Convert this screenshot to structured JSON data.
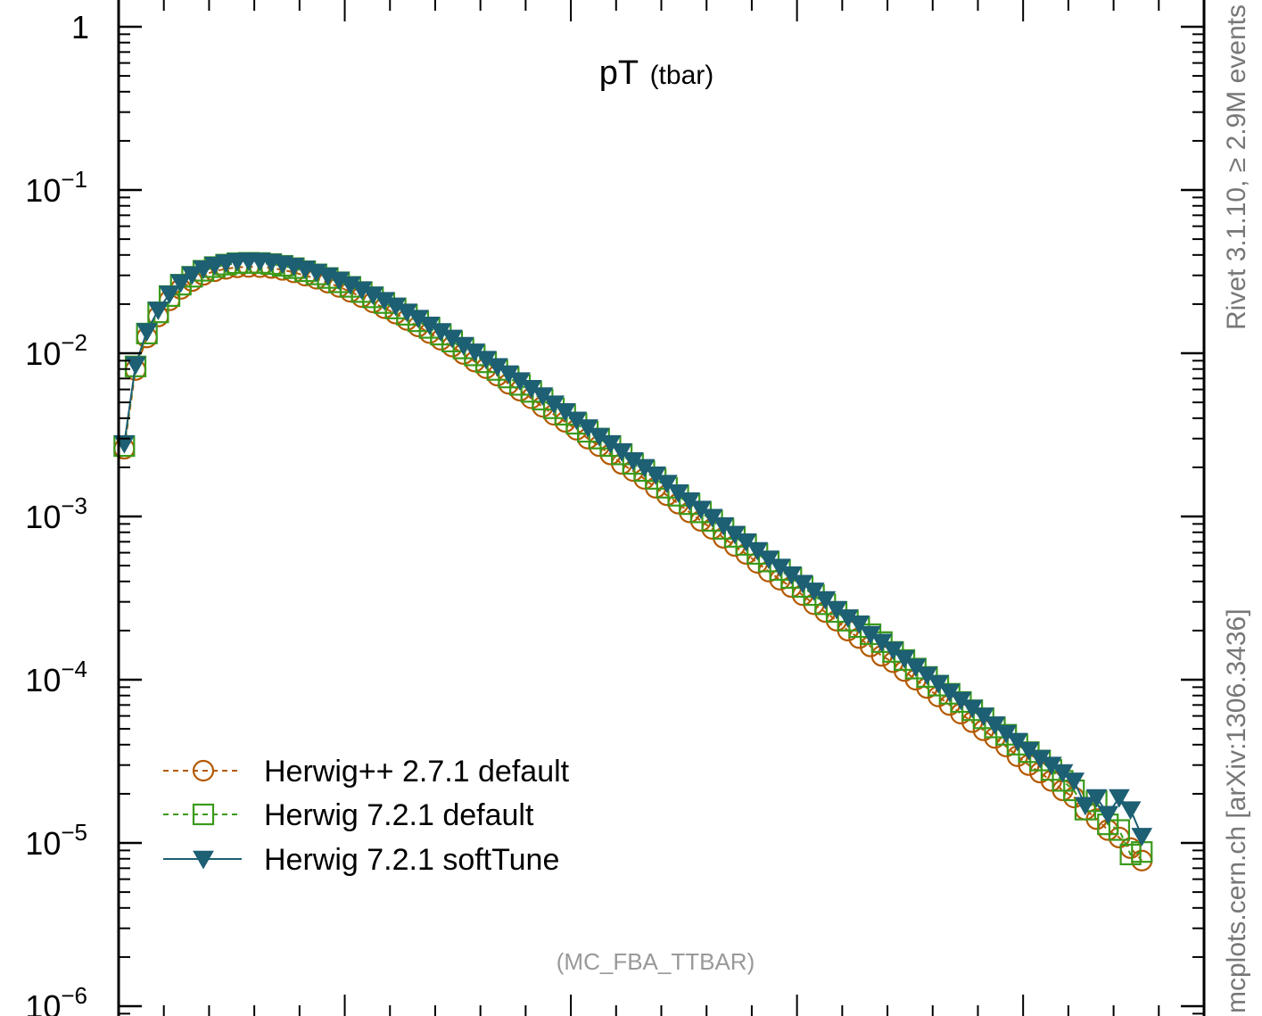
{
  "chart_data": {
    "type": "scatter",
    "title_main": "pT",
    "title_sub": "(tbar)",
    "xlabel": "",
    "ylabel": "",
    "yscale": "log",
    "ylim": [
      1e-06,
      1.3
    ],
    "xlim": [
      0,
      480
    ],
    "ytick_labels": [
      {
        "value": 1,
        "base": "1",
        "exp": ""
      },
      {
        "value": 0.1,
        "base": "10",
        "exp": "−1"
      },
      {
        "value": 0.01,
        "base": "10",
        "exp": "−2"
      },
      {
        "value": 0.001,
        "base": "10",
        "exp": "−3"
      },
      {
        "value": 0.0001,
        "base": "10",
        "exp": "−4"
      },
      {
        "value": 1e-05,
        "base": "10",
        "exp": "−5"
      },
      {
        "value": 1e-06,
        "base": "10",
        "exp": "−6"
      }
    ],
    "grid": false,
    "legend_position": "bottom-left",
    "annotation": "(MC_FBA_TTBAR)",
    "side_label_top": "Rivet 3.1.10, ≥ 2.9M events",
    "side_label_bottom": "mcplots.cern.ch [arXiv:1306.3436]",
    "series": [
      {
        "name": "Herwig++ 2.7.1 default",
        "color": "#b35900",
        "marker": "circle",
        "line": "dashed",
        "points": [
          [
            2.5,
            0.0026
          ],
          [
            7.5,
            0.0079
          ],
          [
            12.5,
            0.0125
          ],
          [
            17.5,
            0.0168
          ],
          [
            22.5,
            0.0211
          ],
          [
            27.5,
            0.0248
          ],
          [
            32.5,
            0.0277
          ],
          [
            37.5,
            0.0302
          ],
          [
            42.5,
            0.0318
          ],
          [
            47.5,
            0.0329
          ],
          [
            52.5,
            0.0336
          ],
          [
            57.5,
            0.0338
          ],
          [
            62.5,
            0.0337
          ],
          [
            67.5,
            0.0333
          ],
          [
            72.5,
            0.0324
          ],
          [
            77.5,
            0.0313
          ],
          [
            82.5,
            0.0299
          ],
          [
            87.5,
            0.0286
          ],
          [
            92.5,
            0.0271
          ],
          [
            97.5,
            0.0255
          ],
          [
            102.5,
            0.0238
          ],
          [
            107.5,
            0.0221
          ],
          [
            112.5,
            0.0205
          ],
          [
            117.5,
            0.0189
          ],
          [
            122.5,
            0.0175
          ],
          [
            127.5,
            0.016
          ],
          [
            132.5,
            0.0146
          ],
          [
            137.5,
            0.0133
          ],
          [
            142.5,
            0.0121
          ],
          [
            147.5,
            0.011
          ],
          [
            152.5,
            0.0099
          ],
          [
            157.5,
            0.0089
          ],
          [
            162.5,
            0.0081
          ],
          [
            167.5,
            0.0073
          ],
          [
            172.5,
            0.0065
          ],
          [
            177.5,
            0.0059
          ],
          [
            182.5,
            0.0053
          ],
          [
            187.5,
            0.0047
          ],
          [
            192.5,
            0.0042
          ],
          [
            197.5,
            0.0038
          ],
          [
            202.5,
            0.0034
          ],
          [
            207.5,
            0.003
          ],
          [
            212.5,
            0.0027
          ],
          [
            217.5,
            0.0024
          ],
          [
            222.5,
            0.0021
          ],
          [
            227.5,
            0.0019
          ],
          [
            232.5,
            0.0017
          ],
          [
            237.5,
            0.0015
          ],
          [
            242.5,
            0.00135
          ],
          [
            247.5,
            0.0012
          ],
          [
            252.5,
            0.00106
          ],
          [
            257.5,
            0.00094
          ],
          [
            262.5,
            0.00084
          ],
          [
            267.5,
            0.00074
          ],
          [
            272.5,
            0.00066
          ],
          [
            277.5,
            0.00059
          ],
          [
            282.5,
            0.00052
          ],
          [
            287.5,
            0.00046
          ],
          [
            292.5,
            0.00041
          ],
          [
            297.5,
            0.00037
          ],
          [
            302.5,
            0.00033
          ],
          [
            307.5,
            0.00029
          ],
          [
            312.5,
            0.00026
          ],
          [
            317.5,
            0.00023
          ],
          [
            322.5,
            0.0002
          ],
          [
            327.5,
            0.00018
          ],
          [
            332.5,
            0.00016
          ],
          [
            337.5,
            0.00014
          ],
          [
            342.5,
            0.000128
          ],
          [
            347.5,
            0.000113
          ],
          [
            352.5,
            0.0001
          ],
          [
            357.5,
            8.9e-05
          ],
          [
            362.5,
            7.9e-05
          ],
          [
            367.5,
            7e-05
          ],
          [
            372.5,
            6.2e-05
          ],
          [
            377.5,
            5.5e-05
          ],
          [
            382.5,
            4.9e-05
          ],
          [
            387.5,
            4.4e-05
          ],
          [
            392.5,
            3.9e-05
          ],
          [
            397.5,
            3.4e-05
          ],
          [
            402.5,
            3e-05
          ],
          [
            407.5,
            2.7e-05
          ],
          [
            412.5,
            2.4e-05
          ],
          [
            417.5,
            2.1e-05
          ],
          [
            422.5,
            1.9e-05
          ],
          [
            427.5,
            1.6e-05
          ],
          [
            432.5,
            1.4e-05
          ],
          [
            437.5,
            1.2e-05
          ],
          [
            442.5,
            1.08e-05
          ],
          [
            447.5,
            9.3e-06
          ],
          [
            452.5,
            7.8e-06
          ]
        ]
      },
      {
        "name": "Herwig 7.2.1 default",
        "color": "#3a9a1a",
        "marker": "square",
        "line": "dashed",
        "points": [
          [
            2.5,
            0.0027
          ],
          [
            7.5,
            0.0083
          ],
          [
            12.5,
            0.0132
          ],
          [
            17.5,
            0.0178
          ],
          [
            22.5,
            0.0224
          ],
          [
            27.5,
            0.0263
          ],
          [
            32.5,
            0.0294
          ],
          [
            37.5,
            0.032
          ],
          [
            42.5,
            0.0337
          ],
          [
            47.5,
            0.0349
          ],
          [
            52.5,
            0.0356
          ],
          [
            57.5,
            0.0358
          ],
          [
            62.5,
            0.0357
          ],
          [
            67.5,
            0.0352
          ],
          [
            72.5,
            0.0343
          ],
          [
            77.5,
            0.0332
          ],
          [
            82.5,
            0.0318
          ],
          [
            87.5,
            0.0304
          ],
          [
            92.5,
            0.0289
          ],
          [
            97.5,
            0.0272
          ],
          [
            102.5,
            0.0255
          ],
          [
            107.5,
            0.0237
          ],
          [
            112.5,
            0.022
          ],
          [
            117.5,
            0.0203
          ],
          [
            122.5,
            0.0188
          ],
          [
            127.5,
            0.0172
          ],
          [
            132.5,
            0.0157
          ],
          [
            137.5,
            0.0143
          ],
          [
            142.5,
            0.013
          ],
          [
            147.5,
            0.0118
          ],
          [
            152.5,
            0.0107
          ],
          [
            157.5,
            0.0097
          ],
          [
            162.5,
            0.0088
          ],
          [
            167.5,
            0.0079
          ],
          [
            172.5,
            0.0071
          ],
          [
            177.5,
            0.0064
          ],
          [
            182.5,
            0.0058
          ],
          [
            187.5,
            0.0052
          ],
          [
            192.5,
            0.0046
          ],
          [
            197.5,
            0.0042
          ],
          [
            202.5,
            0.0037
          ],
          [
            207.5,
            0.0033
          ],
          [
            212.5,
            0.003
          ],
          [
            217.5,
            0.0027
          ],
          [
            222.5,
            0.0024
          ],
          [
            227.5,
            0.0021
          ],
          [
            232.5,
            0.0019
          ],
          [
            237.5,
            0.0017
          ],
          [
            242.5,
            0.0015
          ],
          [
            247.5,
            0.00134
          ],
          [
            252.5,
            0.00119
          ],
          [
            257.5,
            0.00106
          ],
          [
            262.5,
            0.00094
          ],
          [
            267.5,
            0.00084
          ],
          [
            272.5,
            0.00075
          ],
          [
            277.5,
            0.00067
          ],
          [
            282.5,
            0.00059
          ],
          [
            287.5,
            0.00053
          ],
          [
            292.5,
            0.00047
          ],
          [
            297.5,
            0.00042
          ],
          [
            302.5,
            0.00037
          ],
          [
            307.5,
            0.00033
          ],
          [
            312.5,
            0.00029
          ],
          [
            317.5,
            0.00026
          ],
          [
            322.5,
            0.00023
          ],
          [
            327.5,
            0.00021
          ],
          [
            332.5,
            0.00019
          ],
          [
            337.5,
            0.00017
          ],
          [
            342.5,
            0.000148
          ],
          [
            347.5,
            0.000132
          ],
          [
            352.5,
            0.000117
          ],
          [
            357.5,
            0.000104
          ],
          [
            362.5,
            9.2e-05
          ],
          [
            367.5,
            8.2e-05
          ],
          [
            372.5,
            7.3e-05
          ],
          [
            377.5,
            6.5e-05
          ],
          [
            382.5,
            5.8e-05
          ],
          [
            387.5,
            5.1e-05
          ],
          [
            392.5,
            4.6e-05
          ],
          [
            397.5,
            4e-05
          ],
          [
            402.5,
            3.6e-05
          ],
          [
            407.5,
            3.2e-05
          ],
          [
            412.5,
            2.8e-05
          ],
          [
            417.5,
            2.4e-05
          ],
          [
            422.5,
            2.1e-05
          ],
          [
            427.5,
            1.6e-05
          ],
          [
            432.5,
            1.8e-05
          ],
          [
            437.5,
            1.3e-05
          ],
          [
            442.5,
            1.2e-05
          ],
          [
            447.5,
            8.5e-06
          ],
          [
            452.5,
            8.8e-06
          ]
        ]
      },
      {
        "name": "Herwig 7.2.1 softTune",
        "color": "#1d5f73",
        "marker": "triangle-down",
        "line": "solid",
        "points": [
          [
            2.5,
            0.0028
          ],
          [
            7.5,
            0.0085
          ],
          [
            12.5,
            0.0136
          ],
          [
            17.5,
            0.0184
          ],
          [
            22.5,
            0.0231
          ],
          [
            27.5,
            0.0271
          ],
          [
            32.5,
            0.0303
          ],
          [
            37.5,
            0.0329
          ],
          [
            42.5,
            0.0347
          ],
          [
            47.5,
            0.0359
          ],
          [
            52.5,
            0.0366
          ],
          [
            57.5,
            0.0368
          ],
          [
            62.5,
            0.0367
          ],
          [
            67.5,
            0.0362
          ],
          [
            72.5,
            0.0353
          ],
          [
            77.5,
            0.0342
          ],
          [
            82.5,
            0.0328
          ],
          [
            87.5,
            0.0314
          ],
          [
            92.5,
            0.0298
          ],
          [
            97.5,
            0.0281
          ],
          [
            102.5,
            0.0263
          ],
          [
            107.5,
            0.0245
          ],
          [
            112.5,
            0.0228
          ],
          [
            117.5,
            0.0211
          ],
          [
            122.5,
            0.0195
          ],
          [
            127.5,
            0.0179
          ],
          [
            132.5,
            0.0164
          ],
          [
            137.5,
            0.0149
          ],
          [
            142.5,
            0.0136
          ],
          [
            147.5,
            0.0124
          ],
          [
            152.5,
            0.0112
          ],
          [
            157.5,
            0.0102
          ],
          [
            162.5,
            0.0092
          ],
          [
            167.5,
            0.0083
          ],
          [
            172.5,
            0.0075
          ],
          [
            177.5,
            0.0068
          ],
          [
            182.5,
            0.0061
          ],
          [
            187.5,
            0.0055
          ],
          [
            192.5,
            0.0049
          ],
          [
            197.5,
            0.0044
          ],
          [
            202.5,
            0.0039
          ],
          [
            207.5,
            0.0035
          ],
          [
            212.5,
            0.0031
          ],
          [
            217.5,
            0.0028
          ],
          [
            222.5,
            0.0025
          ],
          [
            227.5,
            0.0022
          ],
          [
            232.5,
            0.002
          ],
          [
            237.5,
            0.0018
          ],
          [
            242.5,
            0.0016
          ],
          [
            247.5,
            0.0014
          ],
          [
            252.5,
            0.00125
          ],
          [
            257.5,
            0.00111
          ],
          [
            262.5,
            0.00099
          ],
          [
            267.5,
            0.00088
          ],
          [
            272.5,
            0.00078
          ],
          [
            277.5,
            0.0007
          ],
          [
            282.5,
            0.00062
          ],
          [
            287.5,
            0.00055
          ],
          [
            292.5,
            0.00049
          ],
          [
            297.5,
            0.00044
          ],
          [
            302.5,
            0.00039
          ],
          [
            307.5,
            0.00035
          ],
          [
            312.5,
            0.00031
          ],
          [
            317.5,
            0.00027
          ],
          [
            322.5,
            0.00024
          ],
          [
            327.5,
            0.00022
          ],
          [
            332.5,
            0.00019
          ],
          [
            337.5,
            0.00017
          ],
          [
            342.5,
            0.000152
          ],
          [
            347.5,
            0.000135
          ],
          [
            352.5,
            0.00012
          ],
          [
            357.5,
            0.000107
          ],
          [
            362.5,
            9.5e-05
          ],
          [
            367.5,
            8.4e-05
          ],
          [
            372.5,
            7.5e-05
          ],
          [
            377.5,
            6.7e-05
          ],
          [
            382.5,
            6e-05
          ],
          [
            387.5,
            5.3e-05
          ],
          [
            392.5,
            4.7e-05
          ],
          [
            397.5,
            4.2e-05
          ],
          [
            402.5,
            3.7e-05
          ],
          [
            407.5,
            3.3e-05
          ],
          [
            412.5,
            3e-05
          ],
          [
            417.5,
            2.7e-05
          ],
          [
            422.5,
            2.4e-05
          ],
          [
            427.5,
            1.7e-05
          ],
          [
            432.5,
            1.9e-05
          ],
          [
            437.5,
            1.5e-05
          ],
          [
            442.5,
            1.9e-05
          ],
          [
            447.5,
            1.6e-05
          ],
          [
            452.5,
            1.1e-05
          ]
        ]
      }
    ]
  }
}
